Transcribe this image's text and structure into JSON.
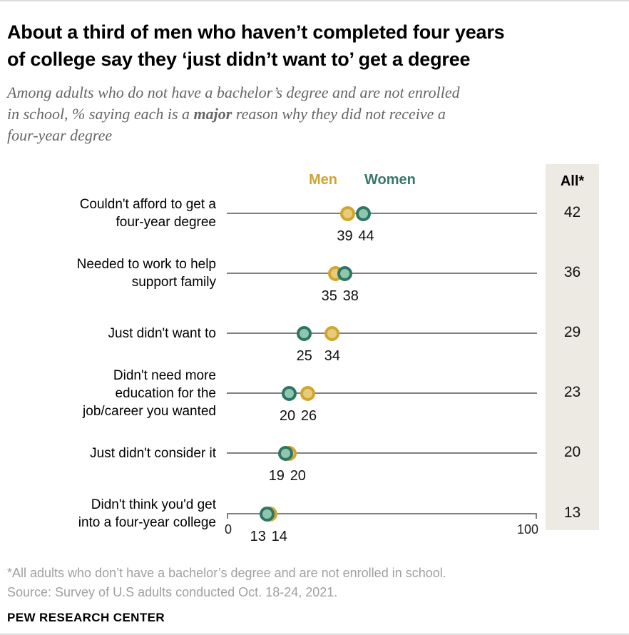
{
  "header": {
    "title_line1": "About a third of men who haven’t completed four years",
    "title_line2": "of college say they ‘just didn’t want to’ get a degree",
    "subtitle_line1": "Among adults who do not have a bachelor’s degree and are not enrolled",
    "subtitle_line2_pre": "in school, % saying each is a ",
    "subtitle_line2_bold": "major",
    "subtitle_line2_post": " reason why they did not receive a",
    "subtitle_line3": "four-year degree"
  },
  "legend": {
    "men_label": "Men",
    "women_label": "Women",
    "all_label": "All*"
  },
  "chart_data": {
    "type": "dot-plot",
    "title": "About a third of men who haven’t completed four years of college say they ‘just didn’t want to’ get a degree",
    "xlabel": "",
    "x_range": [
      0,
      100
    ],
    "x_tick_labels": [
      "0",
      "100"
    ],
    "series_names": [
      "Men",
      "Women",
      "All*"
    ],
    "rows": [
      {
        "category_lines": [
          "Couldn't afford to get a",
          "four-year degree"
        ],
        "men": 39,
        "women": 44,
        "all": 42
      },
      {
        "category_lines": [
          "Needed to work to help",
          "support family"
        ],
        "men": 35,
        "women": 38,
        "all": 36
      },
      {
        "category_lines": [
          "Just didn't want to"
        ],
        "men": 34,
        "women": 25,
        "all": 29
      },
      {
        "category_lines": [
          "Didn't need more",
          "education for the",
          "job/career you wanted"
        ],
        "men": 26,
        "women": 20,
        "all": 23
      },
      {
        "category_lines": [
          "Just didn't consider it"
        ],
        "men": 20,
        "women": 19,
        "all": 20
      },
      {
        "category_lines": [
          "Didn't think you'd get",
          "into a four-year college"
        ],
        "men": 14,
        "women": 13,
        "all": 13
      }
    ],
    "colors": {
      "men_fill": "#e6cb7c",
      "men_stroke": "#d1a62f",
      "men_text": "#cfa42e",
      "women_fill": "#8ec7ad",
      "women_stroke": "#2f7565",
      "women_text": "#38786a",
      "line_gray": "#808080",
      "all_column_bg": "#edeae3"
    }
  },
  "footer": {
    "footnote": "*All adults who don’t have a bachelor’s degree and are not enrolled in school.",
    "source": "Source: Survey of U.S adults conducted Oct. 18-24, 2021.",
    "brand": "PEW RESEARCH CENTER"
  }
}
